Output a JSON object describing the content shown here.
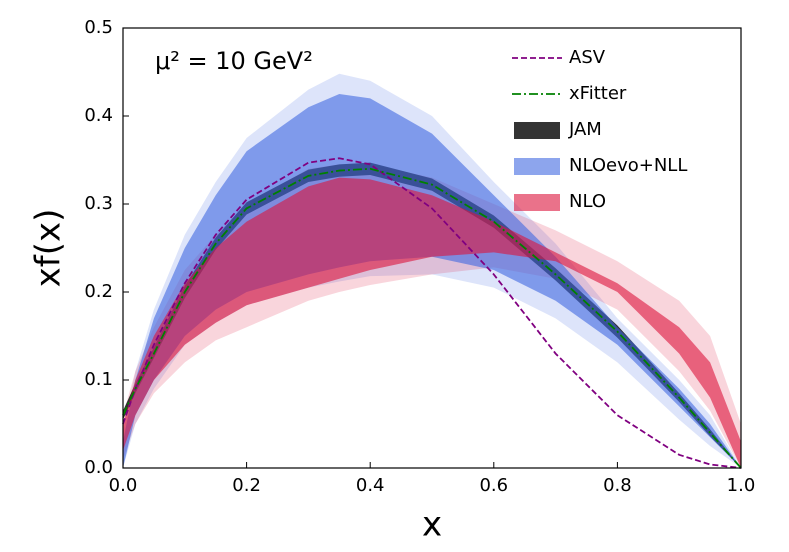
{
  "chart_data": {
    "type": "band",
    "annotation": "μ² = 10 GeV²",
    "xlabel": "x",
    "ylabel": "xf(x)",
    "x": [
      0,
      0.02,
      0.05,
      0.1,
      0.15,
      0.2,
      0.3,
      0.35,
      0.4,
      0.5,
      0.6,
      0.7,
      0.8,
      0.9,
      0.95,
      1
    ],
    "xlim": [
      0,
      1
    ],
    "ylim": [
      0,
      0.5
    ],
    "xticks": [
      {
        "value": 0,
        "label": "0.0"
      },
      0.2,
      0.4,
      0.6,
      0.8,
      {
        "value": 1,
        "label": "1.0"
      }
    ],
    "yticks": [
      {
        "value": 0,
        "label": "0.0"
      },
      0.1,
      0.2,
      0.3,
      0.4,
      0.5
    ],
    "legend": "upper right",
    "series": [
      {
        "name": "ASV",
        "kind": "line",
        "dash": "dashed",
        "color": "#800080",
        "values": [
          0.05,
          0.09,
          0.14,
          0.21,
          0.265,
          0.305,
          0.347,
          0.352,
          0.345,
          0.295,
          0.22,
          0.13,
          0.06,
          0.015,
          0.004,
          0
        ]
      },
      {
        "name": "xFitter",
        "kind": "line",
        "dash": "dashdot",
        "color": "#008000",
        "values": [
          0.06,
          0.09,
          0.13,
          0.2,
          0.255,
          0.295,
          0.332,
          0.338,
          0.34,
          0.322,
          0.28,
          0.22,
          0.155,
          0.08,
          0.04,
          0
        ]
      },
      {
        "name": "JAM",
        "kind": "band",
        "color": "#111111",
        "lower": [
          0.055,
          0.085,
          0.125,
          0.193,
          0.248,
          0.288,
          0.325,
          0.331,
          0.333,
          0.315,
          0.273,
          0.213,
          0.148,
          0.075,
          0.036,
          0
        ],
        "upper": [
          0.065,
          0.096,
          0.137,
          0.207,
          0.262,
          0.302,
          0.339,
          0.345,
          0.347,
          0.329,
          0.287,
          0.227,
          0.162,
          0.085,
          0.044,
          0
        ]
      },
      {
        "name": "NLOevo+NLL",
        "kind": "band",
        "color": "#4169e1",
        "lower": [
          0,
          0.06,
          0.1,
          0.15,
          0.18,
          0.2,
          0.22,
          0.228,
          0.235,
          0.24,
          0.225,
          0.19,
          0.14,
          0.07,
          0.035,
          0
        ],
        "upper": [
          0.03,
          0.1,
          0.17,
          0.25,
          0.31,
          0.36,
          0.41,
          0.425,
          0.42,
          0.38,
          0.31,
          0.24,
          0.16,
          0.09,
          0.05,
          0
        ],
        "outer_lower": [
          0,
          0.05,
          0.09,
          0.14,
          0.165,
          0.185,
          0.205,
          0.212,
          0.218,
          0.22,
          0.205,
          0.17,
          0.12,
          0.055,
          0.025,
          0
        ],
        "outer_upper": [
          0.04,
          0.11,
          0.18,
          0.265,
          0.325,
          0.375,
          0.43,
          0.448,
          0.44,
          0.4,
          0.325,
          0.255,
          0.17,
          0.1,
          0.06,
          0
        ]
      },
      {
        "name": "NLO",
        "kind": "band",
        "color": "#dc143c",
        "lower": [
          0.02,
          0.06,
          0.1,
          0.14,
          0.165,
          0.185,
          0.205,
          0.215,
          0.225,
          0.24,
          0.245,
          0.235,
          0.2,
          0.13,
          0.08,
          0
        ],
        "upper": [
          0.05,
          0.1,
          0.15,
          0.21,
          0.25,
          0.28,
          0.32,
          0.33,
          0.328,
          0.31,
          0.28,
          0.245,
          0.21,
          0.16,
          0.12,
          0.03
        ],
        "outer_lower": [
          0.01,
          0.05,
          0.085,
          0.12,
          0.145,
          0.16,
          0.19,
          0.2,
          0.208,
          0.22,
          0.228,
          0.215,
          0.18,
          0.11,
          0.065,
          0
        ],
        "outer_upper": [
          0.06,
          0.11,
          0.16,
          0.225,
          0.265,
          0.3,
          0.34,
          0.345,
          0.345,
          0.33,
          0.3,
          0.27,
          0.235,
          0.19,
          0.15,
          0.05
        ]
      }
    ]
  }
}
